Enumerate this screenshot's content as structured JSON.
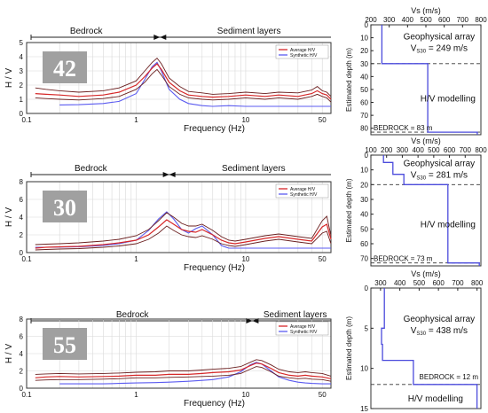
{
  "colors": {
    "average": "#d62728",
    "synthetic": "#5b5bf0",
    "bounds": "#6b2020",
    "profile": "#4b4bdc",
    "badge_bg": "#a0a0a0"
  },
  "panels": [
    {
      "id": "42",
      "badge": "42",
      "bedrock_label": "Bedrock",
      "sediment_label": "Sediment layers",
      "transition_hz": 1.65,
      "hv": {
        "type": "line",
        "xlabel": "Frequency (Hz)",
        "ylabel": "H / V",
        "xscale": "log",
        "xlim": [
          0.1,
          60
        ],
        "ylim": [
          0,
          5
        ],
        "xticks": [
          0.1,
          1,
          10,
          50
        ],
        "yticks": [
          0,
          1,
          2,
          3,
          4,
          5
        ],
        "legend": [
          "Average H/V",
          "Synthetic H/V"
        ],
        "freq": [
          0.12,
          0.15,
          0.2,
          0.3,
          0.5,
          0.7,
          1.0,
          1.2,
          1.4,
          1.55,
          1.7,
          2.0,
          2.5,
          3,
          4,
          5,
          7,
          10,
          15,
          20,
          30,
          40,
          45,
          50,
          55,
          60
        ],
        "average": [
          1.4,
          1.35,
          1.3,
          1.2,
          1.3,
          1.5,
          2.0,
          2.6,
          3.2,
          3.5,
          3.1,
          2.2,
          1.6,
          1.3,
          1.2,
          1.15,
          1.2,
          1.3,
          1.2,
          1.3,
          1.2,
          1.4,
          1.6,
          1.4,
          1.3,
          1.0
        ],
        "upper": [
          1.8,
          1.7,
          1.6,
          1.5,
          1.6,
          1.8,
          2.3,
          3.0,
          3.6,
          3.9,
          3.5,
          2.5,
          1.9,
          1.55,
          1.45,
          1.35,
          1.4,
          1.5,
          1.4,
          1.5,
          1.45,
          1.65,
          1.9,
          1.6,
          1.5,
          1.2
        ],
        "lower": [
          1.1,
          1.05,
          1.0,
          0.95,
          1.05,
          1.2,
          1.7,
          2.2,
          2.8,
          3.1,
          2.7,
          1.9,
          1.35,
          1.1,
          1.0,
          0.95,
          1.0,
          1.1,
          1.0,
          1.1,
          1.0,
          1.2,
          1.35,
          1.2,
          1.1,
          0.8
        ],
        "synthetic": [
          null,
          null,
          0.6,
          0.62,
          0.7,
          0.85,
          1.4,
          2.4,
          3.3,
          3.6,
          3.0,
          1.7,
          1.0,
          0.7,
          0.55,
          0.5,
          0.55,
          0.5,
          0.5,
          0.5,
          0.5,
          0.5,
          0.5,
          0.5,
          0.5,
          0.5
        ]
      },
      "profile": {
        "type": "line",
        "xlabel": "Vs (m/s)",
        "ylabel": "Estimated depth (m)",
        "xlim": [
          200,
          800
        ],
        "ylim": [
          0,
          85
        ],
        "xticks": [
          200,
          300,
          400,
          500,
          600,
          700,
          800
        ],
        "yticks": [
          0,
          10,
          20,
          30,
          40,
          50,
          60,
          70,
          80
        ],
        "array_label": "Geophysical array",
        "vs30_prefix": "V",
        "vs30_sub": "S30",
        "vs30_value": " = 249 m/s",
        "model_label": "H/V modelling",
        "bedrock_text": "BEDROCK = 83 m",
        "bedrock_depth": 83,
        "array_depth": 30,
        "vs": [
          260,
          260,
          510,
          510,
          780,
          780
        ],
        "depth": [
          0,
          30,
          30,
          83,
          83,
          85
        ]
      }
    },
    {
      "id": "30",
      "badge": "30",
      "bedrock_label": "Bedrock",
      "sediment_label": "Sediment layers",
      "transition_hz": 2.0,
      "hv": {
        "type": "line",
        "xlabel": "Frequency (Hz)",
        "ylabel": "H / V",
        "xscale": "log",
        "xlim": [
          0.1,
          60
        ],
        "ylim": [
          0,
          8
        ],
        "xticks": [
          0.1,
          1,
          10,
          50
        ],
        "yticks": [
          0,
          2,
          4,
          6,
          8
        ],
        "legend": [
          "Average H/V",
          "Synthetic H/V"
        ],
        "freq": [
          0.12,
          0.15,
          0.2,
          0.3,
          0.5,
          0.7,
          1.0,
          1.3,
          1.6,
          1.9,
          2.2,
          2.6,
          3,
          3.5,
          4,
          5,
          6,
          7,
          8,
          10,
          15,
          20,
          30,
          40,
          50,
          55,
          60
        ],
        "average": [
          0.5,
          0.6,
          0.65,
          0.7,
          0.9,
          1.1,
          1.4,
          2.0,
          2.9,
          3.7,
          3.2,
          2.6,
          2.4,
          2.3,
          2.6,
          2.0,
          1.4,
          1.1,
          1.0,
          1.2,
          1.6,
          1.8,
          1.5,
          1.3,
          2.9,
          3.2,
          1.5
        ],
        "upper": [
          0.9,
          0.95,
          1.0,
          1.1,
          1.3,
          1.5,
          1.9,
          2.6,
          3.6,
          4.5,
          4.0,
          3.3,
          3.0,
          3.0,
          3.2,
          2.5,
          1.8,
          1.4,
          1.3,
          1.5,
          1.9,
          2.1,
          1.8,
          1.6,
          3.6,
          4.1,
          1.9
        ],
        "lower": [
          0.3,
          0.35,
          0.4,
          0.45,
          0.6,
          0.75,
          1.0,
          1.5,
          2.2,
          3.0,
          2.5,
          2.0,
          1.8,
          1.7,
          1.9,
          1.5,
          1.0,
          0.8,
          0.7,
          0.9,
          1.3,
          1.5,
          1.2,
          1.0,
          2.2,
          2.4,
          1.0
        ],
        "synthetic": [
          0.6,
          0.6,
          0.62,
          0.65,
          0.8,
          1.0,
          1.4,
          2.5,
          3.8,
          4.6,
          3.8,
          2.6,
          2.2,
          2.7,
          3.0,
          2.0,
          0.8,
          0.5,
          0.5,
          0.5,
          0.5,
          0.5,
          0.5,
          0.5,
          0.5,
          0.5,
          0.5
        ]
      },
      "profile": {
        "type": "line",
        "xlabel": "Vs (m/s)",
        "ylabel": "Estimated depth (m)",
        "xlim": [
          100,
          800
        ],
        "ylim": [
          0,
          75
        ],
        "xticks": [
          100,
          200,
          300,
          400,
          500,
          600,
          700,
          800
        ],
        "yticks": [
          0,
          10,
          20,
          30,
          40,
          50,
          60,
          70
        ],
        "array_label": "Geophysical array",
        "vs30_prefix": "V",
        "vs30_sub": "S30",
        "vs30_value": " = 281 m/s",
        "model_label": "H/V modelling",
        "bedrock_text": "BEDROCK = 73 m",
        "bedrock_depth": 73,
        "array_depth": 20,
        "vs": [
          180,
          180,
          240,
          240,
          310,
          310,
          590,
          590,
          790,
          790
        ],
        "depth": [
          0,
          5,
          5,
          13,
          13,
          20,
          20,
          73,
          73,
          75
        ]
      }
    },
    {
      "id": "55",
      "badge": "55",
      "bedrock_label": "Bedrock",
      "sediment_label": "Sediment layers",
      "transition_hz": 11.5,
      "hv": {
        "type": "line",
        "xlabel": "Frequency (Hz)",
        "ylabel": "H / V",
        "xscale": "log",
        "xlim": [
          0.1,
          60
        ],
        "ylim": [
          0,
          8
        ],
        "xticks": [
          0.1,
          1,
          10,
          50
        ],
        "yticks": [
          0,
          2,
          4,
          6,
          8
        ],
        "legend": [
          "Average H/V",
          "Synthetic H/V"
        ],
        "freq": [
          0.12,
          0.15,
          0.2,
          0.3,
          0.5,
          0.7,
          1.0,
          1.5,
          2,
          3,
          4,
          5,
          7,
          9,
          11,
          12.5,
          14,
          17,
          20,
          25,
          30,
          35,
          40,
          50,
          60
        ],
        "average": [
          1.2,
          1.3,
          1.35,
          1.3,
          1.35,
          1.4,
          1.5,
          1.5,
          1.6,
          1.6,
          1.7,
          1.8,
          1.9,
          2.1,
          2.6,
          2.9,
          2.8,
          2.3,
          1.8,
          1.5,
          1.4,
          1.5,
          1.4,
          1.3,
          1.1
        ],
        "upper": [
          1.6,
          1.65,
          1.7,
          1.65,
          1.7,
          1.75,
          1.85,
          1.9,
          2.0,
          2.0,
          2.1,
          2.2,
          2.3,
          2.5,
          3.0,
          3.3,
          3.2,
          2.7,
          2.2,
          1.9,
          1.8,
          1.9,
          1.8,
          1.7,
          1.4
        ],
        "lower": [
          0.9,
          0.95,
          1.0,
          1.0,
          1.05,
          1.1,
          1.2,
          1.2,
          1.25,
          1.3,
          1.35,
          1.4,
          1.5,
          1.7,
          2.2,
          2.5,
          2.4,
          1.9,
          1.4,
          1.2,
          1.1,
          1.15,
          1.05,
          1.0,
          0.8
        ],
        "synthetic": [
          null,
          null,
          0.5,
          0.5,
          0.5,
          0.55,
          0.6,
          0.65,
          0.7,
          0.8,
          0.9,
          1.0,
          1.3,
          1.9,
          2.7,
          3.0,
          2.8,
          2.0,
          1.3,
          0.9,
          0.7,
          0.6,
          0.55,
          0.5,
          0.5
        ]
      },
      "profile": {
        "type": "line",
        "xlabel": "Vs (m/s)",
        "ylabel": "Estimated depth (m)",
        "xlim": [
          250,
          820
        ],
        "ylim": [
          0,
          15
        ],
        "xticks": [
          300,
          400,
          500,
          600,
          700,
          800
        ],
        "yticks": [
          0,
          5,
          10,
          15
        ],
        "array_label": "Geophysical array",
        "vs30_prefix": "V",
        "vs30_sub": "S30",
        "vs30_value": " = 438 m/s",
        "model_label": "H/V modelling",
        "bedrock_text": "BEDROCK = 12 m",
        "bedrock_depth": 12,
        "array_depth": 12,
        "vs": [
          320,
          320,
          305,
          305,
          310,
          310,
          470,
          470,
          800,
          800
        ],
        "depth": [
          0,
          5,
          5,
          7,
          7,
          9,
          9,
          12,
          12,
          15
        ]
      }
    }
  ]
}
